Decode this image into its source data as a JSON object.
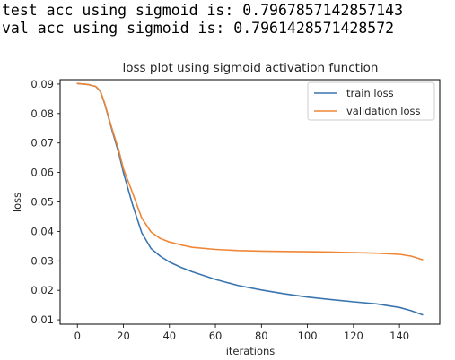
{
  "output_lines": [
    "test acc using sigmoid is: 0.7967857142857143",
    "val acc using sigmoid is: 0.7961428571428572"
  ],
  "chart_data": {
    "type": "line",
    "title": "loss plot using sigmoid activation function",
    "xlabel": "iterations",
    "ylabel": "loss",
    "xlim": [
      -7.5,
      157.5
    ],
    "ylim": [
      0.0085,
      0.0915
    ],
    "xticks": [
      0,
      20,
      40,
      60,
      80,
      100,
      120,
      140
    ],
    "yticks": [
      0.01,
      0.02,
      0.03,
      0.04,
      0.05,
      0.06,
      0.07,
      0.08,
      0.09
    ],
    "ytick_labels": [
      "0.01",
      "0.02",
      "0.03",
      "0.04",
      "0.05",
      "0.06",
      "0.07",
      "0.08",
      "0.09"
    ],
    "grid": false,
    "legend_position": "top-right",
    "series": [
      {
        "name": "train loss",
        "color": "#3b75af",
        "x": [
          0,
          5,
          8,
          10,
          12,
          15,
          18,
          20,
          24,
          28,
          32,
          36,
          40,
          45,
          50,
          60,
          70,
          80,
          90,
          100,
          110,
          120,
          130,
          140,
          145,
          150
        ],
        "y": [
          0.0902,
          0.0898,
          0.0892,
          0.0875,
          0.083,
          0.0745,
          0.0665,
          0.06,
          0.049,
          0.0395,
          0.0342,
          0.0316,
          0.0296,
          0.0278,
          0.0263,
          0.0237,
          0.0216,
          0.0201,
          0.0188,
          0.0177,
          0.0169,
          0.0161,
          0.0154,
          0.0142,
          0.0131,
          0.0117
        ]
      },
      {
        "name": "validation loss",
        "color": "#ef8636",
        "x": [
          0,
          5,
          8,
          10,
          12,
          15,
          18,
          20,
          24,
          28,
          32,
          36,
          40,
          45,
          50,
          60,
          70,
          80,
          90,
          100,
          110,
          120,
          130,
          140,
          145,
          150
        ],
        "y": [
          0.0902,
          0.0898,
          0.0892,
          0.0876,
          0.0832,
          0.075,
          0.0675,
          0.0613,
          0.053,
          0.0445,
          0.0398,
          0.0376,
          0.0364,
          0.0354,
          0.0346,
          0.0339,
          0.0335,
          0.0333,
          0.0332,
          0.0331,
          0.033,
          0.0328,
          0.0326,
          0.0322,
          0.0316,
          0.0304
        ]
      }
    ]
  }
}
